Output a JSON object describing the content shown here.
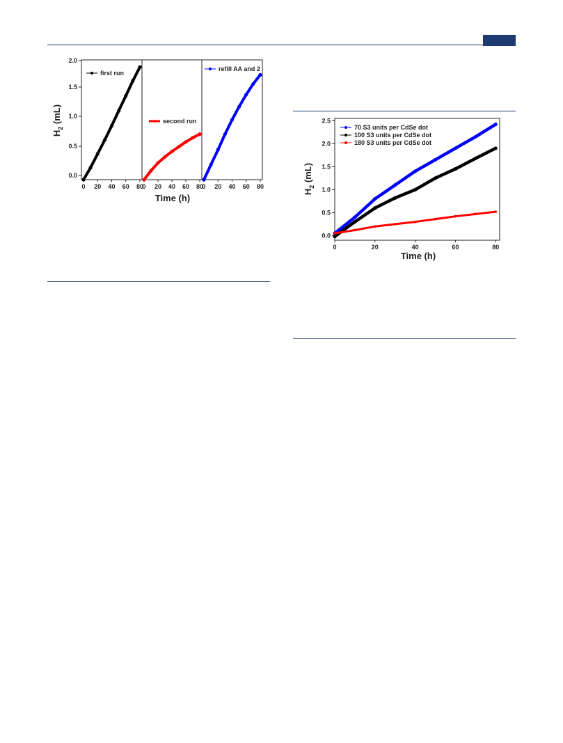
{
  "header": {
    "accent_color": "#1f3a70"
  },
  "chart_data": [
    {
      "type": "line",
      "layout": "three-panel",
      "xlabel": "Time (h)",
      "ylabel": "H2 (mL)",
      "ylabel_main": "H",
      "ylabel_sub": "2",
      "ylabel_unit": "(mL)",
      "ylim": [
        0,
        2.0
      ],
      "yticks": [
        "0.0",
        "0.5",
        "1.0",
        "1.5",
        "2.0"
      ],
      "panels": [
        {
          "series": {
            "name": "first run",
            "color": "#000000",
            "x": [
              0,
              10,
              20,
              30,
              40,
              50,
              60,
              70,
              80
            ],
            "y": [
              0.0,
              0.2,
              0.43,
              0.66,
              0.9,
              1.15,
              1.4,
              1.65,
              1.88
            ]
          },
          "xticks": [
            "0",
            "20",
            "40",
            "60",
            "80"
          ]
        },
        {
          "series": {
            "name": "second run",
            "color": "#ff0000",
            "x": [
              0,
              10,
              20,
              30,
              40,
              50,
              60,
              70,
              80
            ],
            "y": [
              0.0,
              0.15,
              0.28,
              0.38,
              0.47,
              0.55,
              0.63,
              0.7,
              0.76
            ]
          },
          "xticks": [
            "0",
            "20",
            "40",
            "60",
            "80"
          ]
        },
        {
          "series": {
            "name": "refill AA and 2",
            "color": "#0000ff",
            "x": [
              0,
              10,
              20,
              30,
              40,
              50,
              60,
              70,
              80
            ],
            "y": [
              0.0,
              0.25,
              0.5,
              0.76,
              1.0,
              1.22,
              1.42,
              1.6,
              1.75
            ]
          },
          "xticks": [
            "0",
            "20",
            "40",
            "60",
            "80"
          ]
        }
      ]
    },
    {
      "type": "line",
      "xlabel": "Time (h)",
      "ylabel": "H2 (mL)",
      "ylabel_main": "H",
      "ylabel_sub": "2",
      "ylabel_unit": "(mL)",
      "xlim": [
        0,
        82
      ],
      "ylim": [
        -0.1,
        2.55
      ],
      "xticks": [
        "0",
        "20",
        "40",
        "60",
        "80"
      ],
      "yticks": [
        "0.0",
        "0.5",
        "1.0",
        "1.5",
        "2.0",
        "2.5"
      ],
      "legend": "top-left",
      "series": [
        {
          "name": "70 S3 units per CdSe dot",
          "color": "#0000ff",
          "x": [
            0,
            10,
            20,
            30,
            40,
            50,
            60,
            70,
            80
          ],
          "y": [
            0.05,
            0.4,
            0.8,
            1.1,
            1.4,
            1.65,
            1.9,
            2.15,
            2.42
          ]
        },
        {
          "name": "100 S3 units per CdSe dot",
          "color": "#000000",
          "x": [
            0,
            10,
            20,
            30,
            40,
            50,
            60,
            70,
            80
          ],
          "y": [
            -0.02,
            0.3,
            0.6,
            0.82,
            1.0,
            1.25,
            1.45,
            1.68,
            1.9
          ]
        },
        {
          "name": "180 S3 units per CdSe dot",
          "color": "#ff0000",
          "x": [
            0,
            10,
            20,
            30,
            40,
            50,
            60,
            70,
            80
          ],
          "y": [
            0.05,
            0.12,
            0.2,
            0.25,
            0.3,
            0.36,
            0.42,
            0.47,
            0.52
          ]
        }
      ]
    }
  ]
}
